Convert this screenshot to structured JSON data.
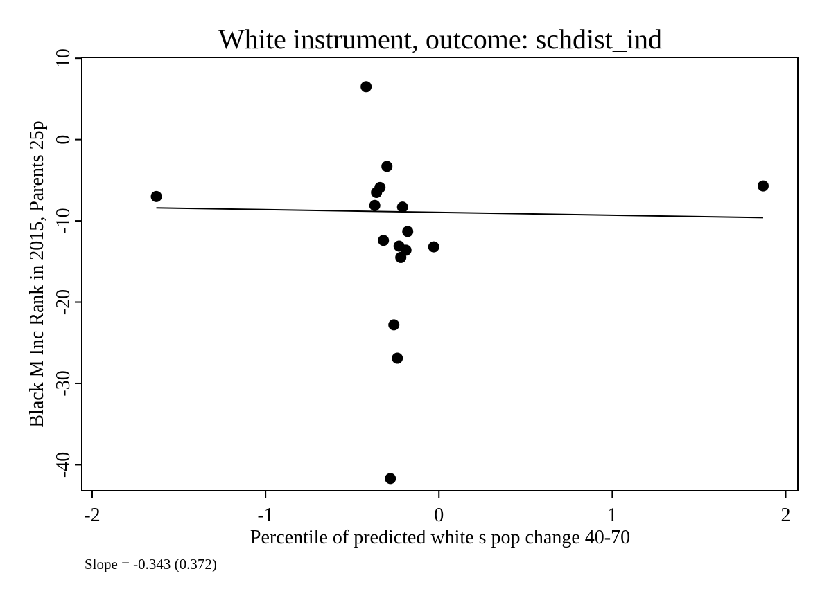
{
  "chart_data": {
    "type": "scatter",
    "title": "White instrument, outcome: schdist_ind",
    "xlabel": "Percentile of predicted white s pop change 40-70",
    "ylabel": "Black M Inc Rank in 2015, Parents 25p",
    "note": "Slope = -0.343 (0.372)",
    "xlim": [
      -2.06,
      2.07
    ],
    "ylim": [
      -43.2,
      10.1
    ],
    "x_ticks": [
      -2,
      -1,
      0,
      1,
      2
    ],
    "y_ticks": [
      -40,
      -30,
      -20,
      -10,
      0,
      10
    ],
    "x_tick_labels": [
      "-2",
      "-1",
      "0",
      "1",
      "2"
    ],
    "y_tick_labels": [
      "-40",
      "-30",
      "-20",
      "-10",
      "0",
      "10"
    ],
    "grid": false,
    "legend": "none",
    "points": [
      {
        "x": -1.63,
        "y": -7.0
      },
      {
        "x": -0.42,
        "y": 6.5
      },
      {
        "x": -0.3,
        "y": -3.3
      },
      {
        "x": -0.34,
        "y": -5.9
      },
      {
        "x": -0.36,
        "y": -6.5
      },
      {
        "x": -0.37,
        "y": -8.1
      },
      {
        "x": -0.21,
        "y": -8.3
      },
      {
        "x": -0.18,
        "y": -11.3
      },
      {
        "x": -0.32,
        "y": -12.4
      },
      {
        "x": -0.23,
        "y": -13.1
      },
      {
        "x": -0.19,
        "y": -13.6
      },
      {
        "x": -0.22,
        "y": -14.5
      },
      {
        "x": -0.03,
        "y": -13.2
      },
      {
        "x": -0.26,
        "y": -22.8
      },
      {
        "x": -0.24,
        "y": -26.9
      },
      {
        "x": -0.28,
        "y": -41.7
      },
      {
        "x": 1.87,
        "y": -5.7
      }
    ],
    "fit_line": {
      "x": [
        -1.63,
        1.87
      ],
      "y": [
        -8.4,
        -9.6
      ]
    },
    "colors": {
      "marker": "#000000",
      "line": "#000000",
      "axis": "#000000"
    }
  }
}
